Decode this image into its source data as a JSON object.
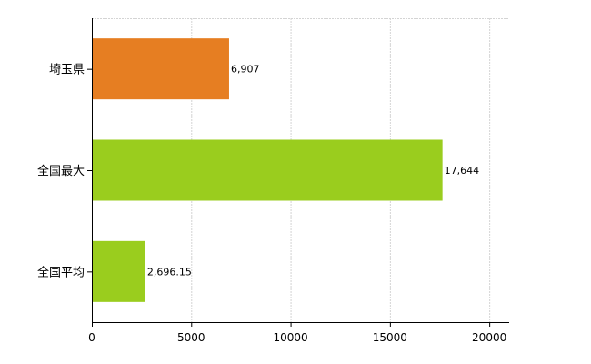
{
  "chart_data": {
    "type": "bar",
    "orientation": "horizontal",
    "categories": [
      "埼玉県",
      "全国最大",
      "全国平均"
    ],
    "values": [
      6907,
      17644,
      2696.15
    ],
    "value_labels": [
      "6,907",
      "17,644",
      "2,696.15"
    ],
    "colors": [
      "#E67E22",
      "#9ACD1E",
      "#9ACD1E"
    ],
    "xlim": [
      0,
      21000
    ],
    "xticks": [
      0,
      5000,
      10000,
      15000,
      20000
    ],
    "xtick_labels": [
      "0",
      "5000",
      "10000",
      "15000",
      "20000"
    ],
    "grid": true,
    "legend": "none"
  }
}
